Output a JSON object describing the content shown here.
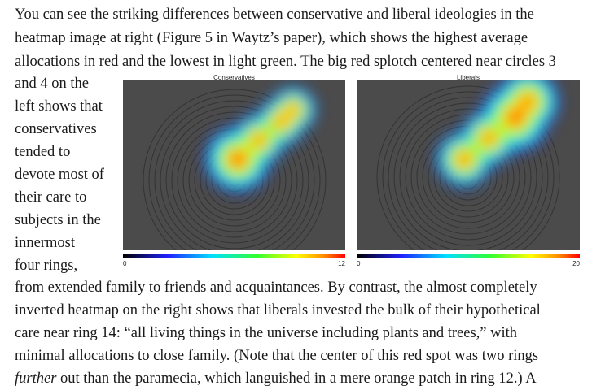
{
  "paragraph": {
    "top_lines": [
      "You can see the striking differences between conservative and liberal ideologies in the",
      "heatmap image at right (Figure 5 in Waytz’s paper), which shows the highest average",
      "allocations in red and the lowest in light green. The big red splotch centered near circles 3"
    ],
    "side_lines": [
      "and 4 on the",
      "left shows that",
      "conservatives",
      "tended to",
      "devote most of",
      "their care to",
      "subjects in the",
      "innermost",
      "four rings,"
    ],
    "bottom_lines": [
      "from extended family to friends and acquaintances. By contrast, the almost completely",
      "inverted heatmap on the right shows that liberals invested the bulk of their hypothetical",
      "care near ring 14: “all living things in the universe including plants and trees,” with",
      "minimal allocations to close family. (Note that the center of this red spot was two rings"
    ],
    "last_line": {
      "italic": "further",
      "rest": " out than the paramecia, which languished in a mere orange patch in ring 12.) A"
    }
  },
  "figure": {
    "panels": [
      {
        "title": "Conservatives",
        "scale_min": "0",
        "scale_max": "12"
      },
      {
        "title": "Liberals",
        "scale_min": "0",
        "scale_max": "20"
      }
    ]
  }
}
